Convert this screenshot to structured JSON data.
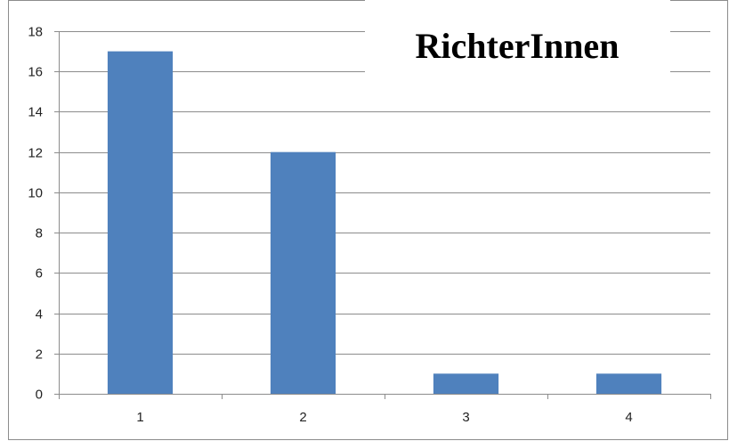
{
  "chart_data": {
    "type": "bar",
    "title": "RichterInnen",
    "categories": [
      "1",
      "2",
      "3",
      "4"
    ],
    "series": [
      {
        "values": [
          17,
          12,
          1,
          1
        ],
        "color": "#4f81bd"
      }
    ],
    "ylim": [
      0,
      18
    ],
    "yticks": [
      0,
      2,
      4,
      6,
      8,
      10,
      12,
      14,
      16,
      18
    ],
    "grid": true,
    "legend": "none"
  }
}
